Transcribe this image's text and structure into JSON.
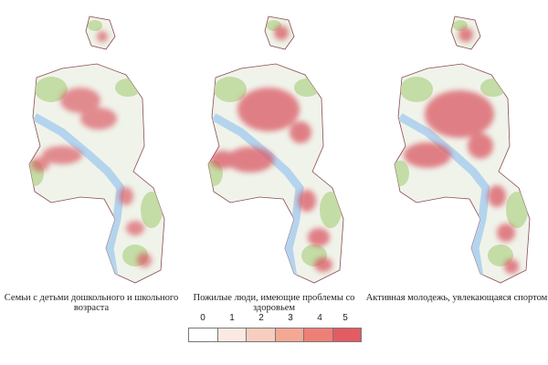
{
  "panels": [
    {
      "id": "p1",
      "caption": "Семьи с детьми дошкольного и школьного возраста"
    },
    {
      "id": "p2",
      "caption": "Пожилые люди, имеющие проблемы со здоровьем"
    },
    {
      "id": "p3",
      "caption": "Активная молодежь, увлекающаяся спортом"
    }
  ],
  "legend": {
    "labels": [
      "0",
      "1",
      "2",
      "3",
      "4",
      "5"
    ],
    "colors": [
      "#ffffff",
      "#fde9e3",
      "#f8cdbf",
      "#f4a893",
      "#ee7f76",
      "#e35b63"
    ]
  },
  "map_colors": {
    "greenery": "#bcd89a",
    "water": "#b4d4ee",
    "boundary": "#8a4b55",
    "heat": "#d9535f"
  }
}
